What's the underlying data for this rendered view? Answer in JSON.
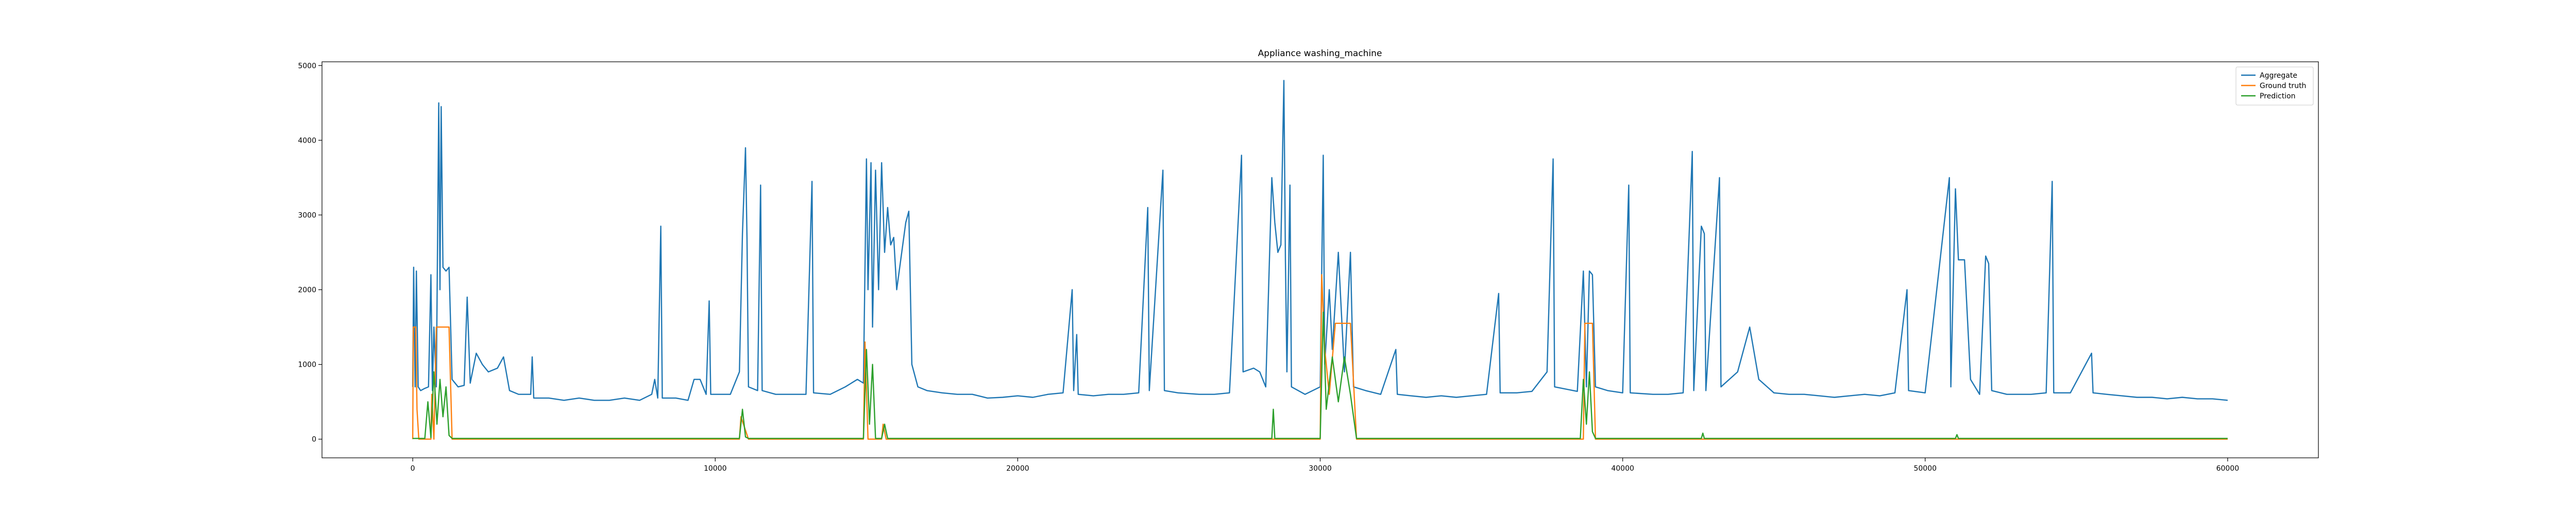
{
  "chart_data": {
    "type": "line",
    "title": "Appliance washing_machine",
    "xlabel": "",
    "ylabel": "",
    "xlim": [
      -3000,
      63000
    ],
    "ylim": [
      -250,
      5050
    ],
    "x_ticks": [
      0,
      10000,
      20000,
      30000,
      40000,
      50000,
      60000
    ],
    "y_ticks": [
      0,
      1000,
      2000,
      3000,
      4000,
      5000
    ],
    "grid": false,
    "legend_position": "top-right",
    "series": [
      {
        "name": "Aggregate",
        "color": "#1f77b4",
        "points": [
          [
            0,
            700
          ],
          [
            30,
            2300
          ],
          [
            80,
            700
          ],
          [
            120,
            2250
          ],
          [
            180,
            700
          ],
          [
            260,
            650
          ],
          [
            400,
            680
          ],
          [
            520,
            700
          ],
          [
            600,
            2200
          ],
          [
            650,
            650
          ],
          [
            700,
            1500
          ],
          [
            780,
            700
          ],
          [
            860,
            4500
          ],
          [
            900,
            2000
          ],
          [
            940,
            4450
          ],
          [
            1000,
            2300
          ],
          [
            1100,
            2250
          ],
          [
            1200,
            2300
          ],
          [
            1300,
            800
          ],
          [
            1500,
            700
          ],
          [
            1700,
            720
          ],
          [
            1800,
            1900
          ],
          [
            1900,
            750
          ],
          [
            2100,
            1150
          ],
          [
            2300,
            1000
          ],
          [
            2500,
            900
          ],
          [
            2800,
            950
          ],
          [
            3000,
            1100
          ],
          [
            3200,
            650
          ],
          [
            3500,
            600
          ],
          [
            3900,
            600
          ],
          [
            3950,
            1100
          ],
          [
            4000,
            550
          ],
          [
            4500,
            550
          ],
          [
            5000,
            520
          ],
          [
            5500,
            550
          ],
          [
            6000,
            520
          ],
          [
            6500,
            520
          ],
          [
            7000,
            550
          ],
          [
            7500,
            520
          ],
          [
            7900,
            600
          ],
          [
            8000,
            800
          ],
          [
            8100,
            550
          ],
          [
            8200,
            2850
          ],
          [
            8250,
            550
          ],
          [
            8700,
            550
          ],
          [
            9100,
            520
          ],
          [
            9300,
            800
          ],
          [
            9500,
            800
          ],
          [
            9700,
            600
          ],
          [
            9800,
            1850
          ],
          [
            9850,
            600
          ],
          [
            10200,
            600
          ],
          [
            10500,
            600
          ],
          [
            10800,
            900
          ],
          [
            10900,
            2750
          ],
          [
            11000,
            3900
          ],
          [
            11050,
            2700
          ],
          [
            11100,
            700
          ],
          [
            11400,
            650
          ],
          [
            11500,
            3400
          ],
          [
            11550,
            650
          ],
          [
            12000,
            600
          ],
          [
            12500,
            600
          ],
          [
            13000,
            600
          ],
          [
            13200,
            3450
          ],
          [
            13250,
            620
          ],
          [
            13800,
            600
          ],
          [
            14300,
            700
          ],
          [
            14700,
            800
          ],
          [
            14900,
            750
          ],
          [
            15000,
            3750
          ],
          [
            15050,
            2000
          ],
          [
            15150,
            3700
          ],
          [
            15200,
            1500
          ],
          [
            15300,
            3600
          ],
          [
            15400,
            2000
          ],
          [
            15500,
            3700
          ],
          [
            15600,
            2500
          ],
          [
            15700,
            3100
          ],
          [
            15800,
            2600
          ],
          [
            15900,
            2700
          ],
          [
            16000,
            2000
          ],
          [
            16300,
            2900
          ],
          [
            16400,
            3050
          ],
          [
            16500,
            1000
          ],
          [
            16700,
            700
          ],
          [
            17000,
            650
          ],
          [
            17500,
            620
          ],
          [
            18000,
            600
          ],
          [
            18500,
            600
          ],
          [
            19000,
            550
          ],
          [
            19500,
            560
          ],
          [
            20000,
            580
          ],
          [
            20500,
            560
          ],
          [
            21000,
            600
          ],
          [
            21500,
            620
          ],
          [
            21800,
            2000
          ],
          [
            21850,
            650
          ],
          [
            21950,
            1400
          ],
          [
            22000,
            600
          ],
          [
            22500,
            580
          ],
          [
            23000,
            600
          ],
          [
            23500,
            600
          ],
          [
            24000,
            620
          ],
          [
            24300,
            3100
          ],
          [
            24350,
            650
          ],
          [
            24800,
            3600
          ],
          [
            24850,
            650
          ],
          [
            25300,
            620
          ],
          [
            26000,
            600
          ],
          [
            26500,
            600
          ],
          [
            27000,
            620
          ],
          [
            27400,
            3800
          ],
          [
            27450,
            900
          ],
          [
            27800,
            950
          ],
          [
            28000,
            900
          ],
          [
            28200,
            700
          ],
          [
            28400,
            3500
          ],
          [
            28500,
            2900
          ],
          [
            28600,
            2500
          ],
          [
            28700,
            2600
          ],
          [
            28800,
            4800
          ],
          [
            28850,
            2400
          ],
          [
            28900,
            900
          ],
          [
            29000,
            3400
          ],
          [
            29050,
            700
          ],
          [
            29500,
            600
          ],
          [
            30000,
            700
          ],
          [
            30100,
            3800
          ],
          [
            30150,
            1000
          ],
          [
            30300,
            2000
          ],
          [
            30400,
            1200
          ],
          [
            30600,
            2500
          ],
          [
            30800,
            900
          ],
          [
            31000,
            2500
          ],
          [
            31100,
            700
          ],
          [
            31500,
            650
          ],
          [
            32000,
            600
          ],
          [
            32500,
            1200
          ],
          [
            32550,
            600
          ],
          [
            33000,
            580
          ],
          [
            33500,
            560
          ],
          [
            34000,
            580
          ],
          [
            34500,
            560
          ],
          [
            35000,
            580
          ],
          [
            35500,
            600
          ],
          [
            35900,
            1950
          ],
          [
            35950,
            620
          ],
          [
            36500,
            620
          ],
          [
            37000,
            640
          ],
          [
            37500,
            900
          ],
          [
            37700,
            3750
          ],
          [
            37750,
            700
          ],
          [
            38500,
            640
          ],
          [
            38700,
            2250
          ],
          [
            38800,
            700
          ],
          [
            38900,
            2250
          ],
          [
            39000,
            2200
          ],
          [
            39100,
            700
          ],
          [
            39500,
            650
          ],
          [
            40000,
            620
          ],
          [
            40200,
            3400
          ],
          [
            40250,
            620
          ],
          [
            41000,
            600
          ],
          [
            41500,
            600
          ],
          [
            42000,
            620
          ],
          [
            42300,
            3850
          ],
          [
            42350,
            650
          ],
          [
            42600,
            2850
          ],
          [
            42700,
            2750
          ],
          [
            42750,
            650
          ],
          [
            43200,
            3500
          ],
          [
            43250,
            700
          ],
          [
            43800,
            900
          ],
          [
            44200,
            1500
          ],
          [
            44500,
            800
          ],
          [
            45000,
            620
          ],
          [
            45500,
            600
          ],
          [
            46000,
            600
          ],
          [
            46500,
            580
          ],
          [
            47000,
            560
          ],
          [
            47500,
            580
          ],
          [
            48000,
            600
          ],
          [
            48500,
            580
          ],
          [
            49000,
            620
          ],
          [
            49400,
            2000
          ],
          [
            49450,
            650
          ],
          [
            50000,
            620
          ],
          [
            50800,
            3500
          ],
          [
            50850,
            700
          ],
          [
            51000,
            3350
          ],
          [
            51100,
            2400
          ],
          [
            51300,
            2400
          ],
          [
            51500,
            800
          ],
          [
            51800,
            600
          ],
          [
            52000,
            2450
          ],
          [
            52100,
            2350
          ],
          [
            52200,
            650
          ],
          [
            52700,
            600
          ],
          [
            53000,
            600
          ],
          [
            53500,
            600
          ],
          [
            54000,
            620
          ],
          [
            54200,
            3450
          ],
          [
            54250,
            620
          ],
          [
            54800,
            620
          ],
          [
            55500,
            1150
          ],
          [
            55550,
            620
          ],
          [
            56000,
            600
          ],
          [
            56500,
            580
          ],
          [
            57000,
            560
          ],
          [
            57500,
            560
          ],
          [
            58000,
            540
          ],
          [
            58500,
            560
          ],
          [
            59000,
            540
          ],
          [
            59500,
            540
          ],
          [
            60000,
            520
          ]
        ]
      },
      {
        "name": "Ground truth",
        "color": "#ff7f0e",
        "points": [
          [
            0,
            0
          ],
          [
            20,
            1500
          ],
          [
            100,
            1500
          ],
          [
            140,
            400
          ],
          [
            200,
            0
          ],
          [
            600,
            0
          ],
          [
            630,
            600
          ],
          [
            700,
            0
          ],
          [
            780,
            1500
          ],
          [
            1200,
            1500
          ],
          [
            1300,
            0
          ],
          [
            10800,
            0
          ],
          [
            10850,
            300
          ],
          [
            11100,
            0
          ],
          [
            14900,
            0
          ],
          [
            14950,
            1300
          ],
          [
            15050,
            0
          ],
          [
            15500,
            0
          ],
          [
            15550,
            200
          ],
          [
            15650,
            0
          ],
          [
            30000,
            0
          ],
          [
            30050,
            2200
          ],
          [
            30150,
            1200
          ],
          [
            30300,
            600
          ],
          [
            30500,
            1550
          ],
          [
            31000,
            1550
          ],
          [
            31200,
            0
          ],
          [
            38700,
            0
          ],
          [
            38750,
            1550
          ],
          [
            39000,
            1550
          ],
          [
            39100,
            0
          ],
          [
            60000,
            0
          ]
        ]
      },
      {
        "name": "Prediction",
        "color": "#2ca02c",
        "points": [
          [
            0,
            10
          ],
          [
            400,
            10
          ],
          [
            500,
            500
          ],
          [
            600,
            20
          ],
          [
            700,
            900
          ],
          [
            800,
            200
          ],
          [
            900,
            800
          ],
          [
            1000,
            300
          ],
          [
            1100,
            700
          ],
          [
            1200,
            50
          ],
          [
            1300,
            10
          ],
          [
            10800,
            10
          ],
          [
            10900,
            400
          ],
          [
            11000,
            30
          ],
          [
            11100,
            10
          ],
          [
            14900,
            10
          ],
          [
            15000,
            1200
          ],
          [
            15100,
            200
          ],
          [
            15200,
            1000
          ],
          [
            15300,
            10
          ],
          [
            15500,
            10
          ],
          [
            15600,
            200
          ],
          [
            15700,
            10
          ],
          [
            28400,
            10
          ],
          [
            28450,
            400
          ],
          [
            28500,
            10
          ],
          [
            30000,
            10
          ],
          [
            30100,
            1700
          ],
          [
            30200,
            400
          ],
          [
            30400,
            1100
          ],
          [
            30600,
            500
          ],
          [
            30800,
            1100
          ],
          [
            31000,
            600
          ],
          [
            31200,
            10
          ],
          [
            38600,
            10
          ],
          [
            38700,
            800
          ],
          [
            38800,
            200
          ],
          [
            38900,
            900
          ],
          [
            39000,
            100
          ],
          [
            39100,
            10
          ],
          [
            42600,
            10
          ],
          [
            42650,
            80
          ],
          [
            42700,
            10
          ],
          [
            51000,
            10
          ],
          [
            51050,
            60
          ],
          [
            51100,
            10
          ],
          [
            60000,
            10
          ]
        ]
      }
    ]
  }
}
